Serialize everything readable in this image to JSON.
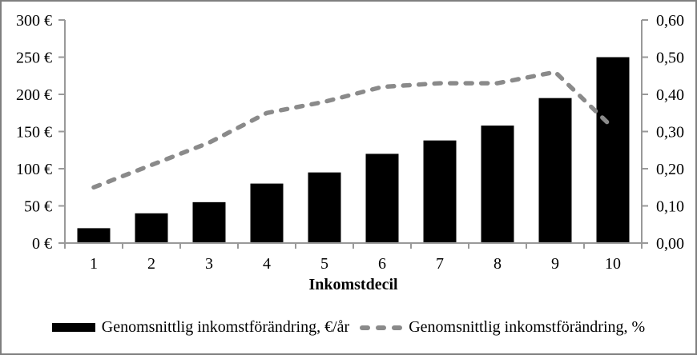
{
  "chart_data": {
    "type": "combo",
    "categories": [
      "1",
      "2",
      "3",
      "4",
      "5",
      "6",
      "7",
      "8",
      "9",
      "10"
    ],
    "series": [
      {
        "name": "Genomsnittlig inkomstförändring, €/år",
        "type": "bar",
        "axis": "left",
        "color": "#000000",
        "values": [
          20,
          40,
          55,
          80,
          95,
          120,
          138,
          158,
          195,
          250
        ]
      },
      {
        "name": "Genomsnittlig inkomstförändring, %",
        "type": "line",
        "axis": "right",
        "style": "dashed",
        "color": "#8a8a8a",
        "values": [
          0.15,
          0.21,
          0.27,
          0.35,
          0.38,
          0.42,
          0.43,
          0.43,
          0.46,
          0.31
        ]
      }
    ],
    "title": "",
    "xlabel": "Inkomstdecil",
    "ylabel_left": "",
    "ylabel_right": "",
    "left_axis": {
      "min": 0,
      "max": 300,
      "step": 50,
      "tick_labels": [
        "0 €",
        "50 €",
        "100 €",
        "150 €",
        "200 €",
        "250 €",
        "300 €"
      ]
    },
    "right_axis": {
      "min": 0,
      "max": 0.6,
      "step": 0.1,
      "tick_labels": [
        "0,00",
        "0,10",
        "0,20",
        "0,30",
        "0,40",
        "0,50",
        "0,60"
      ]
    },
    "grid": false,
    "legend_position": "bottom",
    "colors": {
      "bar": "#000000",
      "line": "#8a8a8a",
      "axis": "#999999",
      "text": "#000000",
      "frame": "#7f7f7f",
      "background": "#ffffff"
    }
  }
}
